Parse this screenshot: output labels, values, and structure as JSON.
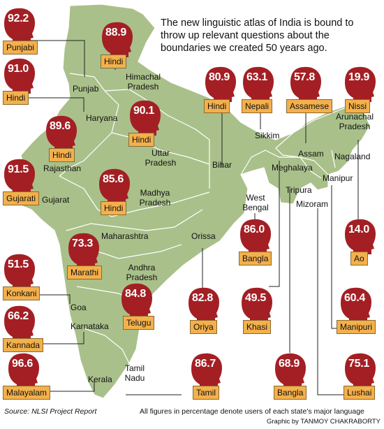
{
  "headline": "The new linguistic atlas of India is bound to throw up relevant questions about the boundaries we created 50 years ago.",
  "states": {
    "punjab": "Punjab",
    "himachal": "Himachal Pradesh",
    "haryana": "Haryana",
    "uttar_pradesh": "Uttar Pradesh",
    "bihar": "Bihar",
    "sikkim": "Sikkim",
    "arunachal": "Arunachal Pradesh",
    "assam": "Assam",
    "nagaland": "Nagaland",
    "meghalaya": "Meghalaya",
    "manipur": "Manipur",
    "tripura": "Tripura",
    "mizoram": "Mizoram",
    "west_bengal": "West Bengal",
    "rajasthan": "Rajasthan",
    "gujarat": "Gujarat",
    "madhya_pradesh": "Madhya Pradesh",
    "maharashtra": "Maharashtra",
    "orissa": "Orissa",
    "andhra": "Andhra Pradesh",
    "goa": "Goa",
    "karnataka": "Karnataka",
    "kerala": "Kerala",
    "tamil_nadu": "Tamil Nadu"
  },
  "heads": [
    {
      "value": "92.2",
      "language": "Punjabi"
    },
    {
      "value": "88.9",
      "language": "Hindi"
    },
    {
      "value": "91.0",
      "language": "Hindi"
    },
    {
      "value": "80.9",
      "language": "Hindi"
    },
    {
      "value": "63.1",
      "language": "Nepali"
    },
    {
      "value": "57.8",
      "language": "Assamese"
    },
    {
      "value": "19.9",
      "language": "Nissi"
    },
    {
      "value": "90.1",
      "language": "Hindi"
    },
    {
      "value": "89.6",
      "language": "Hindi"
    },
    {
      "value": "91.5",
      "language": "Gujarati"
    },
    {
      "value": "85.6",
      "language": "Hindi"
    },
    {
      "value": "86.0",
      "language": "Bangla"
    },
    {
      "value": "14.0",
      "language": "Ao"
    },
    {
      "value": "73.3",
      "language": "Marathi"
    },
    {
      "value": "51.5",
      "language": "Konkani"
    },
    {
      "value": "84.8",
      "language": "Telugu"
    },
    {
      "value": "82.8",
      "language": "Oriya"
    },
    {
      "value": "49.5",
      "language": "Khasi"
    },
    {
      "value": "60.4",
      "language": "Manipuri"
    },
    {
      "value": "66.2",
      "language": "Kannada"
    },
    {
      "value": "96.6",
      "language": "Malayalam"
    },
    {
      "value": "86.7",
      "language": "Tamil"
    },
    {
      "value": "68.9",
      "language": "Bangla"
    },
    {
      "value": "75.1",
      "language": "Lushai"
    }
  ],
  "footer": {
    "source": "Source: NLSI Project Report",
    "note": "All figures in percentage denote users of each state's major language",
    "credit": "Graphic by TANMOY CHAKRABORTY"
  },
  "colors": {
    "map": "#a9c08a",
    "head": "#a31f24",
    "tag": "#f3b04c"
  }
}
